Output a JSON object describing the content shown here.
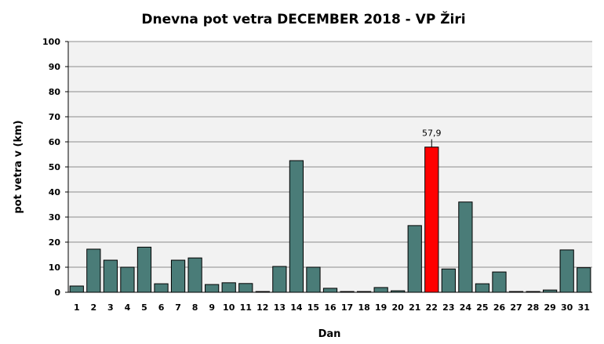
{
  "chart_data": {
    "type": "bar",
    "title": "Dnevna pot vetra DECEMBER 2018 - VP Žiri",
    "xlabel": "Dan",
    "ylabel": "pot vetra  v (km)",
    "ylim": [
      0,
      100
    ],
    "yticks": [
      0,
      10,
      20,
      30,
      40,
      50,
      60,
      70,
      80,
      90,
      100
    ],
    "grid": true,
    "categories": [
      "1",
      "2",
      "3",
      "4",
      "5",
      "6",
      "7",
      "8",
      "9",
      "10",
      "11",
      "12",
      "13",
      "14",
      "15",
      "16",
      "17",
      "18",
      "19",
      "20",
      "21",
      "22",
      "23",
      "24",
      "25",
      "26",
      "27",
      "28",
      "29",
      "30",
      "31"
    ],
    "values": [
      2.5,
      17.2,
      12.8,
      10.0,
      18.0,
      3.4,
      12.8,
      13.7,
      3.1,
      3.8,
      3.5,
      0.3,
      10.3,
      52.5,
      10.0,
      1.6,
      0.3,
      0.3,
      1.9,
      0.6,
      26.6,
      57.9,
      9.3,
      36.0,
      3.4,
      8.1,
      0.3,
      0.3,
      0.9,
      16.9,
      9.8
    ],
    "highlight": {
      "index": 21,
      "label": "57,9",
      "color": "#ff0000"
    },
    "bar_color": "#4a7c78",
    "plot_background": "#f2f2f2"
  }
}
